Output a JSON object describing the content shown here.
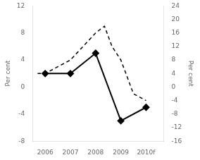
{
  "chart_data": {
    "type": "line",
    "ylabel": "Per cent",
    "y2label": "Per cent",
    "series": [
      {
        "x": [
          2006,
          2007,
          2008,
          2009,
          2010
        ],
        "values": [
          2,
          2,
          5,
          -5,
          -3
        ],
        "color": "#000000",
        "marker": "diamond",
        "line_style": "solid",
        "axis": "y"
      },
      {
        "x": [
          2005.7,
          2006.0,
          2006.5,
          2007.0,
          2007.5,
          2008.0,
          2008.35,
          2008.65,
          2009.0,
          2009.5,
          2010.0
        ],
        "values": [
          4,
          4,
          6,
          8,
          12,
          16,
          18,
          12,
          8,
          -2,
          -4
        ],
        "color": "#000000",
        "marker": "none",
        "line_style": "dashed",
        "axis": "y2"
      }
    ],
    "xlim": [
      2005.5,
      2010.7
    ],
    "xticks": [
      2006,
      2007,
      2008,
      2009,
      {
        "value": 2010,
        "label": "2010f"
      }
    ],
    "ylim": [
      -8,
      12
    ],
    "yticks": [
      -8,
      -4,
      0,
      4,
      8,
      12
    ],
    "y2lim": [
      -16,
      24
    ],
    "y2ticks": [
      -16,
      -12,
      -8,
      -4,
      0,
      4,
      8,
      12,
      16,
      20,
      24
    ],
    "grid": false
  }
}
